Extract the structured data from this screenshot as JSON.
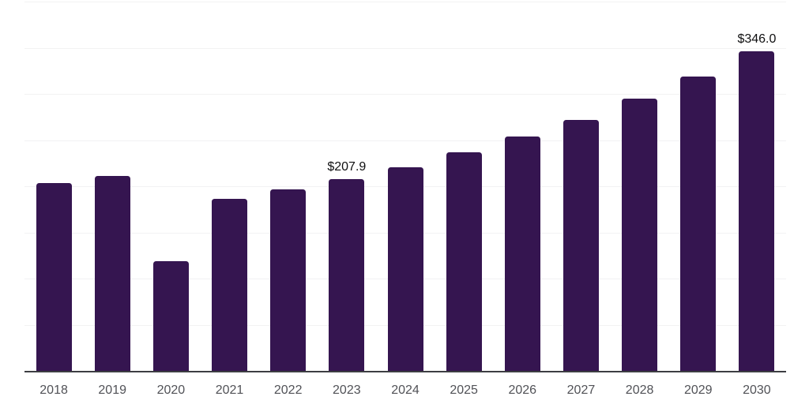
{
  "chart_data": {
    "type": "bar",
    "title": "",
    "xlabel": "",
    "ylabel": "",
    "categories": [
      "2018",
      "2019",
      "2020",
      "2021",
      "2022",
      "2023",
      "2024",
      "2025",
      "2026",
      "2027",
      "2028",
      "2029",
      "2030"
    ],
    "values": [
      203.2,
      211.1,
      118.9,
      186.3,
      196.5,
      207.9,
      220.8,
      236.6,
      254.0,
      271.9,
      294.5,
      318.4,
      346.0
    ],
    "data_labels": [
      "",
      "",
      "",
      "",
      "",
      "$207.9",
      "",
      "",
      "",
      "",
      "",
      "",
      "$346.0"
    ],
    "ylim": [
      0,
      400
    ],
    "gridline_step": 50,
    "grid": true,
    "legend": false,
    "colors": {
      "bar": "#351550",
      "gridline": "#f2f2f3",
      "axis_line": "#3d3e42",
      "data_label": "#0f0f10",
      "tick_label": "#515257",
      "background": "#ffffff"
    }
  }
}
